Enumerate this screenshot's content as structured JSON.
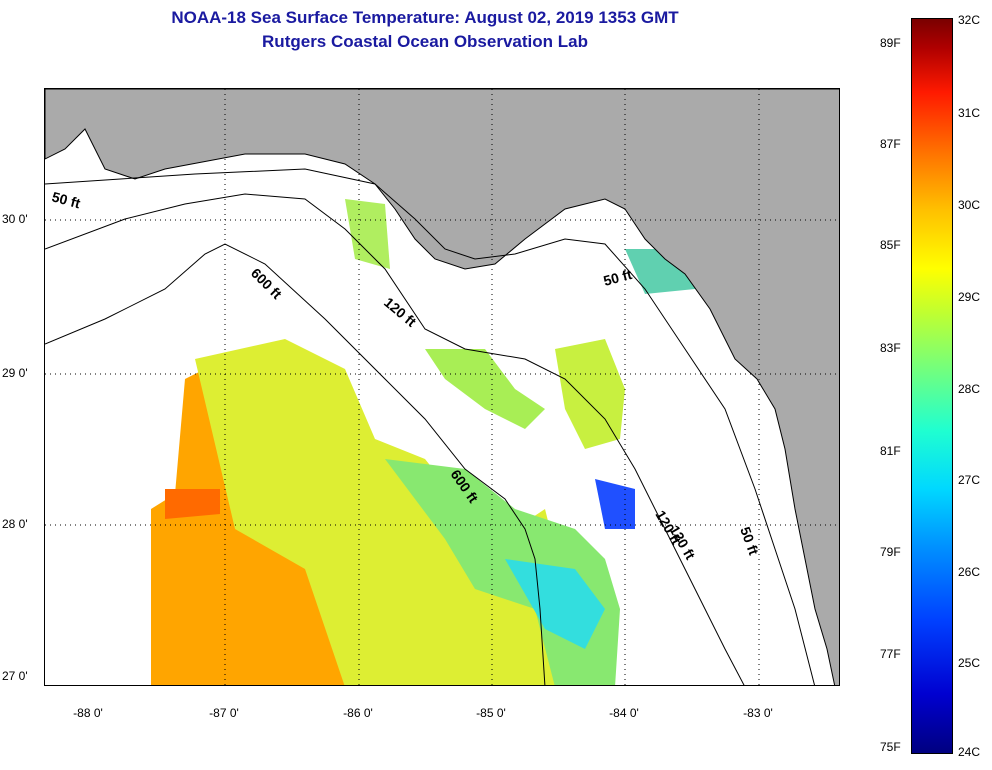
{
  "header": {
    "title": "NOAA-18 Sea Surface Temperature:  August 02, 2019 1353 GMT",
    "subtitle": "Rutgers Coastal Ocean Observation Lab"
  },
  "map": {
    "lat_labels": [
      "30 0'",
      "29 0'",
      "28 0'",
      "27 0'"
    ],
    "lon_labels": [
      "-88 0'",
      "-87 0'",
      "-86 0'",
      "-85 0'",
      "-84 0'",
      "-83 0'"
    ],
    "contour_labels": [
      "50 ft",
      "600 ft",
      "120 ft",
      "50 ft",
      "120 ft",
      "600 ft",
      "120 ft",
      "50 ft"
    ],
    "colors": {
      "land": "#aaaaaa",
      "water": "#ffffff",
      "grid": "#000000"
    }
  },
  "colorbar": {
    "fahrenheit": [
      "89F",
      "87F",
      "85F",
      "83F",
      "81F",
      "79F",
      "77F",
      "75F"
    ],
    "celsius": [
      "32C",
      "31C",
      "30C",
      "29C",
      "28C",
      "27C",
      "26C",
      "25C",
      "24C"
    ]
  }
}
